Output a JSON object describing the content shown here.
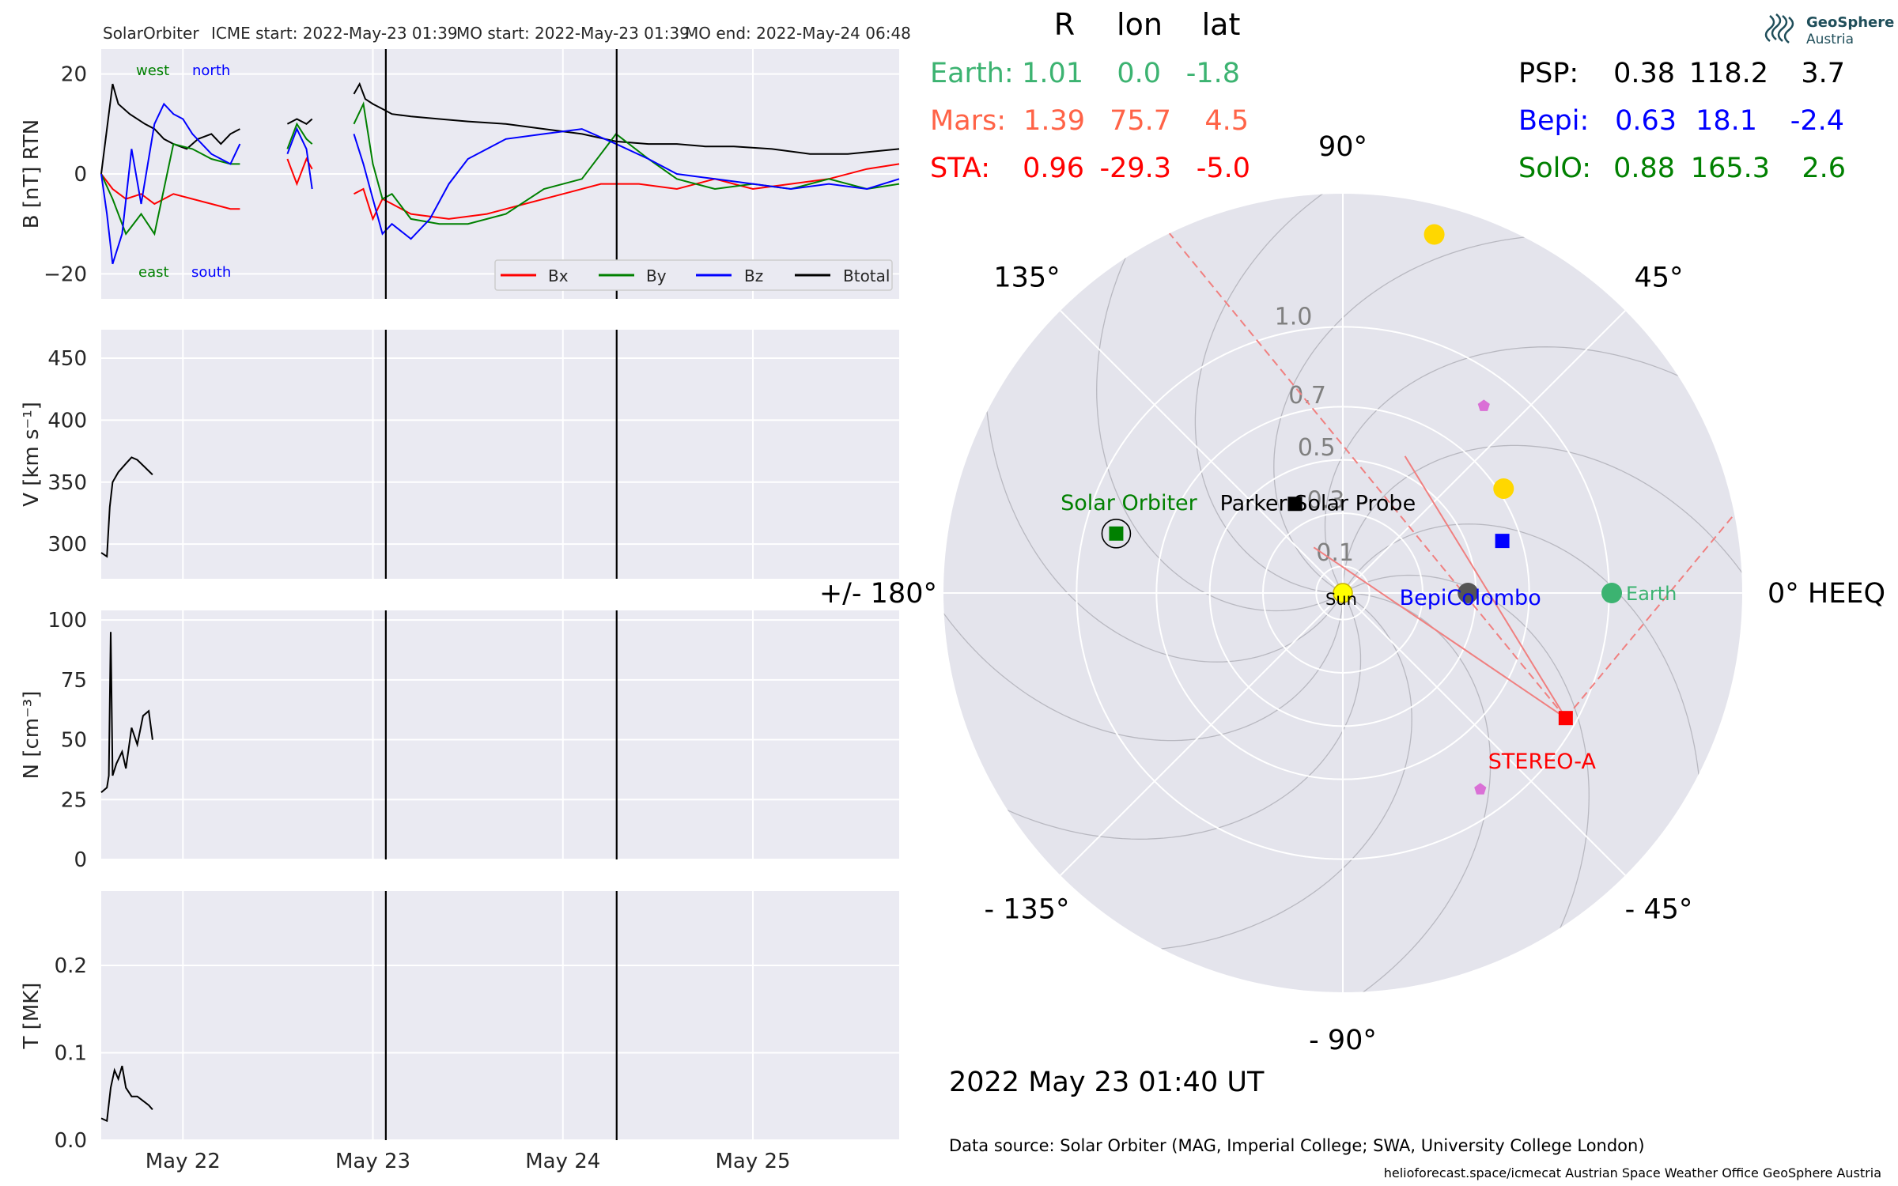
{
  "header": {
    "spacecraft": "SolarOrbiter",
    "icme_start": "ICME start: 2022-May-23 01:39",
    "mo_start": "MO start: 2022-May-23 01:39",
    "mo_end": "MO end: 2022-May-24 06:48"
  },
  "colors": {
    "bx": "#ff0000",
    "by": "#008000",
    "bz": "#0000ff",
    "btot": "#000000",
    "earth": "#3cb371",
    "mars": "#ff6347",
    "sta": "#ff0000",
    "psp": "#000000",
    "bepi": "#0000ff",
    "solo": "#008000",
    "panel": "#eaeaf2",
    "polar_bg": "#e4e4ec"
  },
  "labels": {
    "west": "west",
    "north": "north",
    "east": "east",
    "south": "south"
  },
  "chart_data": [
    {
      "type": "line",
      "ylabel": "B [nT] RTN",
      "ylim": [
        -25,
        25
      ],
      "yticks": [
        20,
        0,
        -20
      ],
      "ytick_labels": [
        "20",
        "0",
        "−20"
      ],
      "xlim": [
        21.57,
        25.77
      ],
      "xticks": [
        22,
        23,
        24,
        25
      ],
      "xtick_labels": [
        "May 22",
        "May 23",
        "May 24",
        "May 25"
      ],
      "event_lines": [
        23.068,
        24.283
      ],
      "legend": {
        "position": "lower-right",
        "entries": [
          "Bx",
          "By",
          "Bz",
          "Btotal"
        ]
      },
      "series": [
        {
          "name": "Btotal",
          "x": [
            21.57,
            21.63,
            21.66,
            21.72,
            21.8,
            21.85,
            21.9,
            21.95,
            22.02,
            22.08,
            22.15,
            22.2,
            22.25,
            22.3,
            null,
            22.55,
            22.6,
            22.65,
            22.68,
            null,
            22.9,
            22.93,
            22.96,
            23.0,
            23.05,
            23.1,
            23.2,
            23.35,
            23.5,
            23.7,
            23.9,
            24.1,
            24.28,
            24.45,
            24.6,
            24.75,
            24.9,
            25.1,
            25.3,
            25.5,
            25.77
          ],
          "y": [
            0,
            18,
            14,
            12,
            10,
            9,
            7,
            6,
            5,
            7,
            8,
            6,
            8,
            9,
            null,
            10,
            11,
            10,
            11,
            null,
            16,
            18,
            15,
            14,
            13,
            12,
            11.5,
            11,
            10.5,
            10,
            9,
            8,
            6.5,
            6,
            6,
            5.5,
            5.5,
            5,
            4,
            4,
            5
          ]
        },
        {
          "name": "Bx",
          "x": [
            21.57,
            21.63,
            21.7,
            21.78,
            21.85,
            21.95,
            22.05,
            22.15,
            22.25,
            22.3,
            null,
            22.55,
            22.6,
            22.65,
            22.68,
            null,
            22.9,
            22.95,
            23.0,
            23.05,
            23.1,
            23.2,
            23.4,
            23.6,
            23.8,
            24.0,
            24.2,
            24.4,
            24.6,
            24.8,
            25.0,
            25.2,
            25.4,
            25.6,
            25.77
          ],
          "y": [
            0,
            -3,
            -5,
            -4,
            -6,
            -4,
            -5,
            -6,
            -7,
            -7,
            null,
            3,
            -2,
            3,
            1,
            null,
            -4,
            -3,
            -9,
            -5,
            -6,
            -8,
            -9,
            -8,
            -6,
            -4,
            -2,
            -2,
            -3,
            -1,
            -3,
            -2,
            -1,
            1,
            2
          ]
        },
        {
          "name": "By",
          "x": [
            21.57,
            21.63,
            21.7,
            21.78,
            21.85,
            21.95,
            22.05,
            22.15,
            22.25,
            22.3,
            null,
            22.55,
            22.6,
            22.65,
            22.68,
            null,
            22.9,
            22.95,
            23.0,
            23.05,
            23.1,
            23.2,
            23.35,
            23.5,
            23.7,
            23.9,
            24.1,
            24.28,
            24.45,
            24.6,
            24.8,
            25.0,
            25.2,
            25.4,
            25.6,
            25.77
          ],
          "y": [
            0,
            -5,
            -12,
            -8,
            -12,
            6,
            5,
            3,
            2,
            2,
            null,
            5,
            10,
            7,
            6,
            null,
            10,
            14,
            2,
            -5,
            -4,
            -9,
            -10,
            -10,
            -8,
            -3,
            -1,
            8,
            3,
            -1,
            -3,
            -2,
            -3,
            -1,
            -3,
            -2
          ]
        },
        {
          "name": "Bz",
          "x": [
            21.57,
            21.6,
            21.63,
            21.68,
            21.73,
            21.78,
            21.85,
            21.9,
            21.95,
            22.0,
            22.05,
            22.1,
            22.15,
            22.2,
            22.25,
            22.3,
            null,
            22.55,
            22.6,
            22.65,
            22.68,
            null,
            22.9,
            22.95,
            23.0,
            23.05,
            23.1,
            23.2,
            23.3,
            23.4,
            23.5,
            23.7,
            23.9,
            24.1,
            24.28,
            24.45,
            24.6,
            24.8,
            25.0,
            25.2,
            25.4,
            25.6,
            25.77
          ],
          "y": [
            0,
            -8,
            -18,
            -12,
            5,
            -6,
            10,
            14,
            12,
            11,
            8,
            6,
            4,
            3,
            2,
            6,
            null,
            4,
            9,
            5,
            -3,
            null,
            8,
            2,
            -5,
            -12,
            -10,
            -13,
            -9,
            -2,
            3,
            7,
            8,
            9,
            6,
            3,
            0,
            -1,
            -2,
            -3,
            -2,
            -3,
            -1
          ]
        }
      ]
    },
    {
      "type": "line",
      "ylabel": "V [km s⁻¹]",
      "ylim": [
        272,
        473
      ],
      "yticks": [
        450,
        400,
        350,
        300
      ],
      "ytick_labels": [
        "450",
        "400",
        "350",
        "300"
      ],
      "xlim": [
        21.57,
        25.77
      ],
      "xticks": [
        22,
        23,
        24,
        25
      ],
      "xtick_labels": [
        "May 22",
        "May 23",
        "May 24",
        "May 25"
      ],
      "event_lines": [
        23.068,
        24.283
      ],
      "series": [
        {
          "name": "V",
          "x": [
            21.57,
            21.6,
            21.615,
            21.63,
            21.66,
            21.7,
            21.73,
            21.76,
            21.8,
            21.84
          ],
          "y": [
            293,
            290,
            330,
            350,
            358,
            365,
            370,
            368,
            362,
            356
          ]
        }
      ]
    },
    {
      "type": "line",
      "ylabel": "N [cm⁻³]",
      "ylim": [
        0,
        104
      ],
      "yticks": [
        100,
        75,
        50,
        25,
        0
      ],
      "ytick_labels": [
        "100",
        "75",
        "50",
        "25",
        "0"
      ],
      "xlim": [
        21.57,
        25.77
      ],
      "xticks": [
        22,
        23,
        24,
        25
      ],
      "xtick_labels": [
        "May 22",
        "May 23",
        "May 24",
        "May 25"
      ],
      "event_lines": [
        23.068,
        24.283
      ],
      "series": [
        {
          "name": "N",
          "x": [
            21.57,
            21.6,
            21.61,
            21.62,
            21.63,
            21.65,
            21.68,
            21.7,
            21.73,
            21.76,
            21.79,
            21.82,
            21.84
          ],
          "y": [
            28,
            30,
            35,
            95,
            35,
            40,
            45,
            38,
            55,
            48,
            60,
            62,
            50
          ]
        }
      ]
    },
    {
      "type": "line",
      "ylabel": "T [MK]",
      "ylim": [
        0,
        0.285
      ],
      "yticks": [
        0.2,
        0.1,
        0.0
      ],
      "ytick_labels": [
        "0.2",
        "0.1",
        "0.0"
      ],
      "xlim": [
        21.57,
        25.77
      ],
      "xticks": [
        22,
        23,
        24,
        25
      ],
      "xtick_labels": [
        "May 22",
        "May 23",
        "May 24",
        "May 25"
      ],
      "event_lines": [
        23.068,
        24.283
      ],
      "series": [
        {
          "name": "T",
          "x": [
            21.57,
            21.6,
            21.62,
            21.64,
            21.66,
            21.68,
            21.7,
            21.73,
            21.76,
            21.79,
            21.82,
            21.84
          ],
          "y": [
            0.025,
            0.022,
            0.06,
            0.08,
            0.07,
            0.085,
            0.06,
            0.05,
            0.05,
            0.045,
            0.04,
            0.035
          ]
        }
      ]
    },
    {
      "type": "scatter",
      "projection": "polar",
      "rlabels": [
        "1.0",
        "0.7",
        "0.5",
        "0.3",
        "0.1"
      ],
      "r_ticks": [
        1.0,
        0.7,
        0.5,
        0.3,
        0.1
      ],
      "angle_labels": [
        {
          "deg": 0,
          "text": "0° HEEQ"
        },
        {
          "deg": 45,
          "text": "45°"
        },
        {
          "deg": 90,
          "text": "90°"
        },
        {
          "deg": 135,
          "text": "135°"
        },
        {
          "deg": 180,
          "text": "+/- 180°"
        },
        {
          "deg": -135,
          "text": "- 135°"
        },
        {
          "deg": -90,
          "text": "- 90°"
        },
        {
          "deg": -45,
          "text": "- 45°"
        }
      ],
      "objects": [
        {
          "name": "Sun",
          "label": "Sun",
          "r": 0,
          "lon": 0,
          "color": "#ffff00",
          "marker": "circle"
        },
        {
          "name": "Earth",
          "label": "Earth",
          "r": 1.01,
          "lon": 0.0,
          "color": "#3cb371",
          "marker": "circle"
        },
        {
          "name": "Mars",
          "label": "",
          "r": 1.39,
          "lon": 75.7,
          "color": "#ffd700",
          "marker": "circle"
        },
        {
          "name": "STEREO-A",
          "label": "STEREO-A",
          "r": 0.96,
          "lon": -29.3,
          "color": "#ff0000",
          "marker": "square"
        },
        {
          "name": "PSP",
          "label": "Parker Solar Probe",
          "r": 0.38,
          "lon": 118.2,
          "color": "#000000",
          "marker": "square"
        },
        {
          "name": "Bepi",
          "label": "BepiColombo",
          "r": 0.63,
          "lon": 18.1,
          "color": "#0000ff",
          "marker": "square"
        },
        {
          "name": "SolO",
          "label": "Solar Orbiter",
          "r": 0.88,
          "lon": 165.3,
          "color": "#008000",
          "marker": "square"
        },
        {
          "name": "Mercury",
          "label": "",
          "r": 0.47,
          "lon": 0,
          "color": "#555555",
          "marker": "circle"
        },
        {
          "name": "Venus",
          "label": "",
          "r": 0.72,
          "lon": 33,
          "color": "#ffd700",
          "marker": "circle"
        },
        {
          "name": "pent1",
          "label": "",
          "r": 0.88,
          "lon": 53,
          "color": "#da70d6",
          "marker": "pentagon"
        },
        {
          "name": "pent2",
          "label": "",
          "r": 0.9,
          "lon": -55,
          "color": "#da70d6",
          "marker": "pentagon"
        }
      ]
    }
  ],
  "positions_table": {
    "headers": [
      "R",
      "lon",
      "lat"
    ],
    "left": [
      {
        "name": "Earth:",
        "r": "1.01",
        "lon": "0.0",
        "lat": "-1.8"
      },
      {
        "name": "Mars:",
        "r": "1.39",
        "lon": "75.7",
        "lat": "4.5"
      },
      {
        "name": "STA:",
        "r": "0.96",
        "lon": "-29.3",
        "lat": "-5.0"
      }
    ],
    "right": [
      {
        "name": "PSP:",
        "r": "0.38",
        "lon": "118.2",
        "lat": "3.7"
      },
      {
        "name": "Bepi:",
        "r": "0.63",
        "lon": "18.1",
        "lat": "-2.4"
      },
      {
        "name": "SolO:",
        "r": "0.88",
        "lon": "165.3",
        "lat": "2.6"
      }
    ]
  },
  "logo": {
    "line1": "GeoSphere",
    "line2": "Austria"
  },
  "date_label": "2022 May 23  01:40 UT",
  "data_source": "Data source: Solar Orbiter (MAG, Imperial College; SWA, University College London)",
  "footer": "helioforecast.space/icmecat   Austrian Space Weather Office   GeoSphere Austria"
}
